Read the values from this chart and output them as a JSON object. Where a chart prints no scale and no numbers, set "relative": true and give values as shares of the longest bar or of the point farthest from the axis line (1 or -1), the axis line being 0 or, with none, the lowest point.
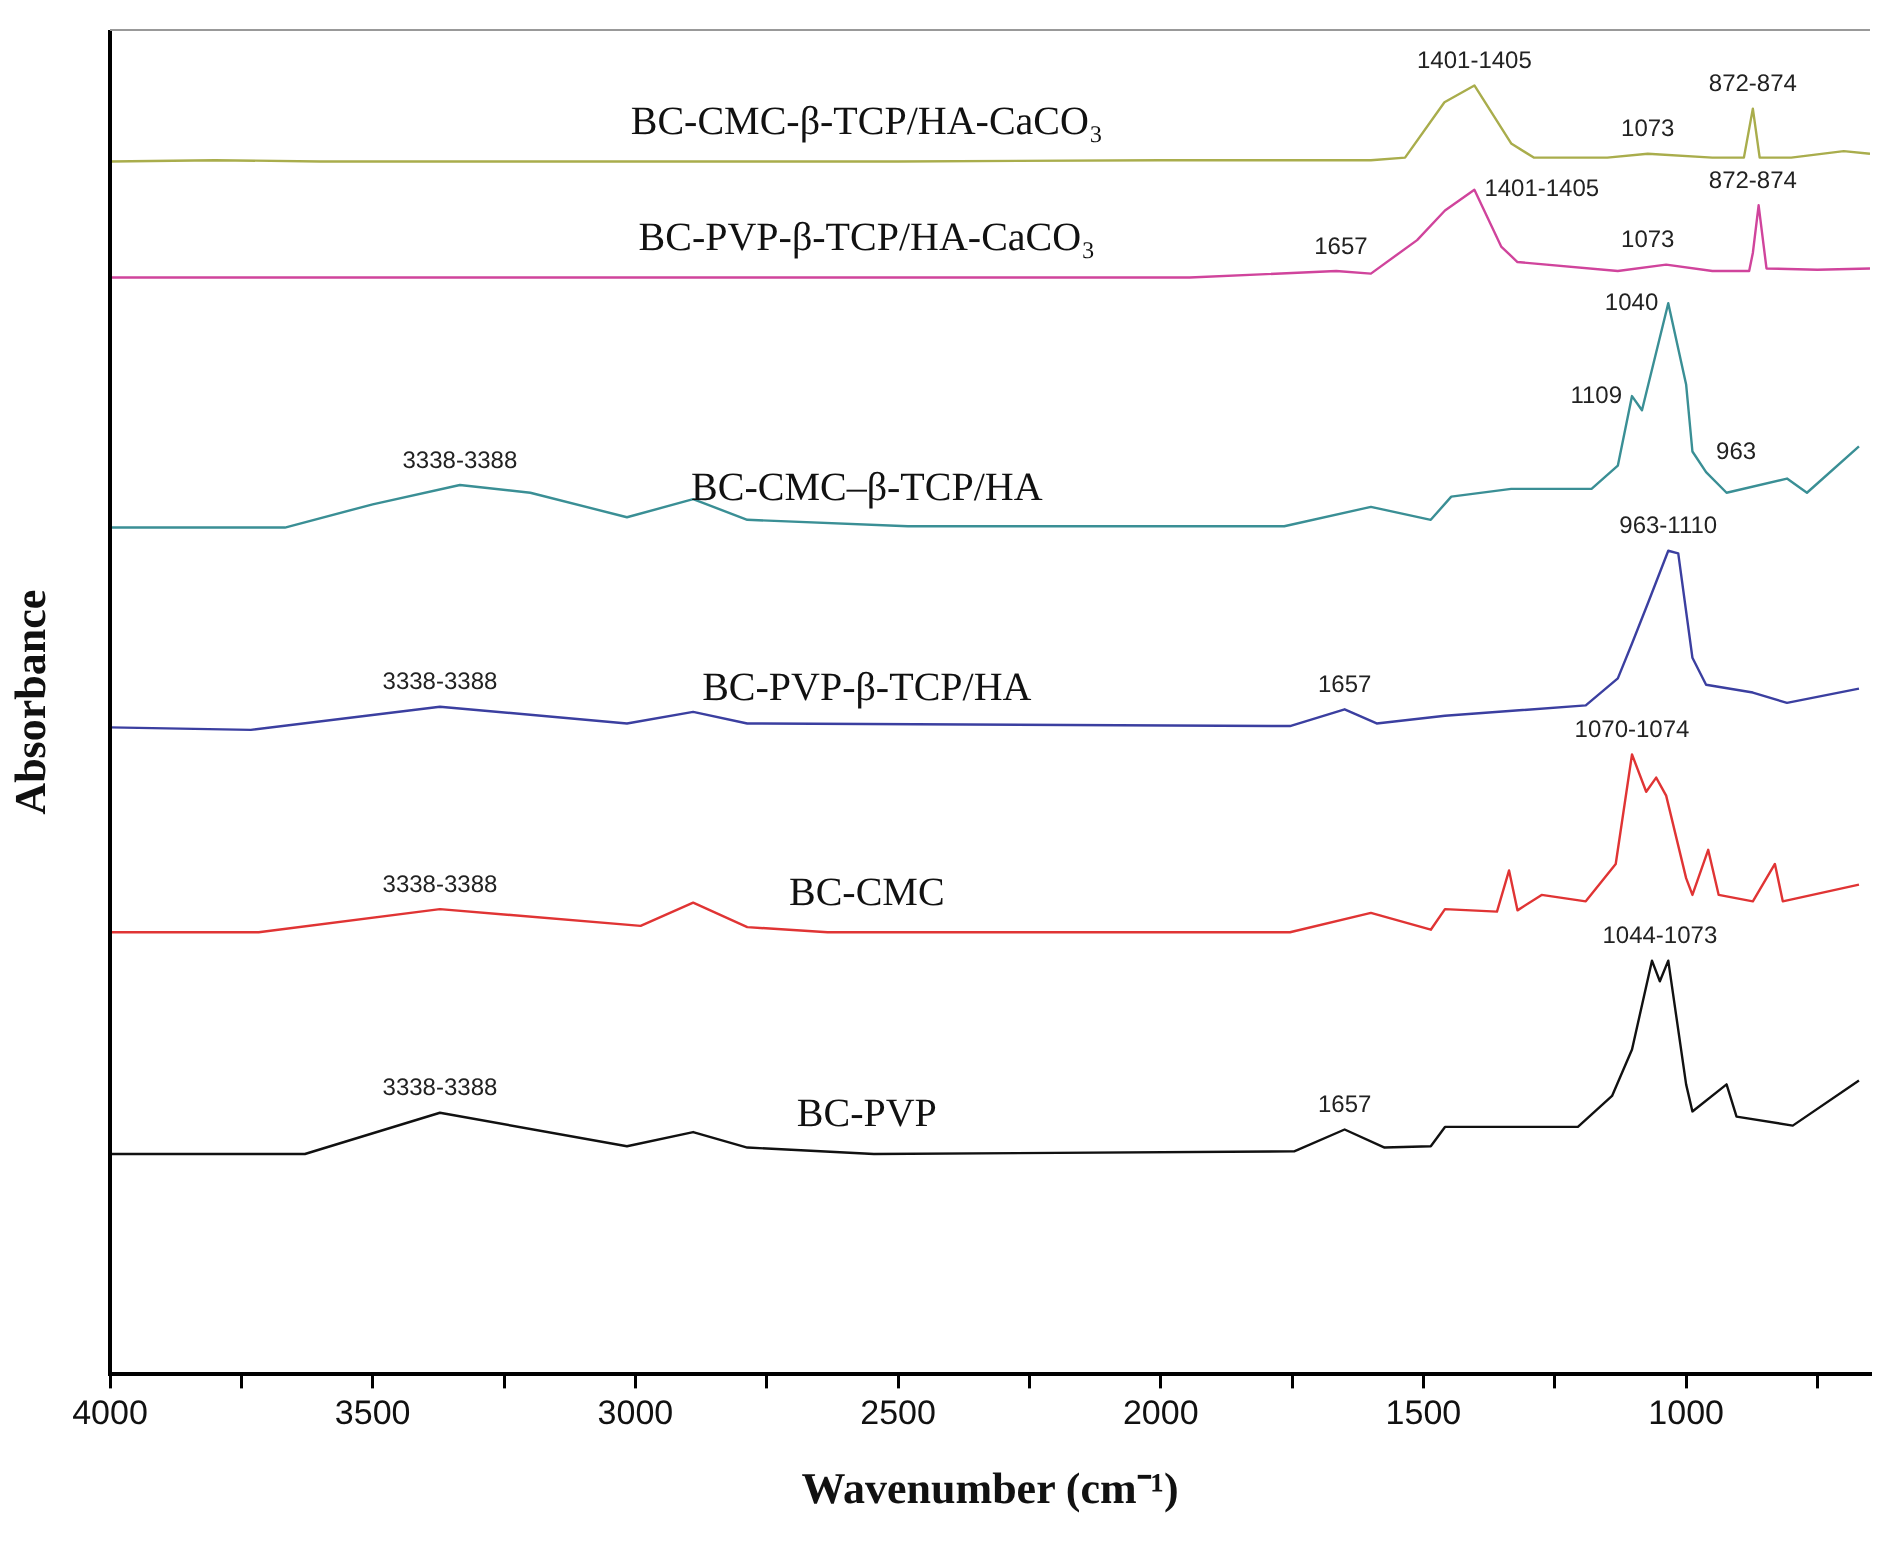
{
  "chart_data": {
    "type": "line",
    "relative": true,
    "xlabel": "Wavenumber (cm⁻¹)",
    "ylabel": "Absorbance",
    "xlim": [
      4000,
      650
    ],
    "xticks": [
      4000,
      {
        "value": 3750,
        "label": null
      },
      3500,
      {
        "value": 3250,
        "label": null
      },
      3000,
      {
        "value": 2750,
        "label": null
      },
      2500,
      {
        "value": 2250,
        "label": null
      },
      2000,
      {
        "value": 1750,
        "label": null
      },
      1500,
      {
        "value": 1250,
        "label": null
      },
      1000,
      {
        "value": 750,
        "label": null
      }
    ],
    "legend": false,
    "marker": "none",
    "line_style": "solid",
    "series": [
      {
        "name": "BC-CMC-β-TCP/HA-CaCO₃",
        "color": "#a9ad4c",
        "x": [
          4000,
          3800,
          3600,
          2500,
          2000,
          1600,
          1535,
          1460,
          1403,
          1333,
          1290,
          1150,
          1073,
          950,
          890,
          873,
          860,
          800,
          700,
          650
        ],
        "values": [
          0.941,
          0.942,
          0.941,
          0.941,
          0.942,
          0.942,
          0.944,
          0.987,
          1.0,
          0.955,
          0.944,
          0.944,
          0.947,
          0.944,
          0.944,
          0.982,
          0.944,
          0.944,
          0.949,
          0.947
        ]
      },
      {
        "name": "BC-PVP-β-TCP/HA-CaCO₃",
        "color": "#d0449c",
        "x": [
          4000,
          3000,
          1945,
          1666,
          1600,
          1512,
          1459,
          1403,
          1352,
          1321,
          1130,
          1038,
          950,
          880,
          873,
          862,
          847,
          750,
          650
        ],
        "values": [
          0.851,
          0.851,
          0.851,
          0.856,
          0.854,
          0.88,
          0.903,
          0.919,
          0.875,
          0.863,
          0.856,
          0.861,
          0.856,
          0.856,
          0.87,
          0.907,
          0.858,
          0.857,
          0.858
        ]
      },
      {
        "name": "BC-CMC–β-TCP/HA",
        "color": "#3a8f95",
        "x": [
          4000,
          3667,
          3500,
          3334,
          3200,
          3016,
          2890,
          2787,
          2481,
          1765,
          1600,
          1486,
          1447,
          1333,
          1180,
          1130,
          1103,
          1084,
          1034,
          1000,
          988,
          962,
          923,
          808,
          770,
          671
        ],
        "values": [
          0.657,
          0.657,
          0.675,
          0.69,
          0.684,
          0.665,
          0.679,
          0.663,
          0.658,
          0.658,
          0.673,
          0.663,
          0.681,
          0.687,
          0.687,
          0.705,
          0.759,
          0.748,
          0.831,
          0.768,
          0.716,
          0.7,
          0.684,
          0.695,
          0.684,
          0.72
        ]
      },
      {
        "name": "BC-PVP-β-TCP/HA",
        "color": "#3b3fa0",
        "x": [
          4000,
          3732,
          3372,
          3016,
          2890,
          2787,
          1754,
          1650,
          1589,
          1459,
          1191,
          1130,
          1103,
          1072,
          1034,
          1015,
          988,
          962,
          873,
          808,
          671
        ],
        "values": [
          0.502,
          0.5,
          0.518,
          0.505,
          0.514,
          0.505,
          0.503,
          0.516,
          0.505,
          0.511,
          0.519,
          0.54,
          0.567,
          0.599,
          0.639,
          0.637,
          0.556,
          0.535,
          0.529,
          0.521,
          0.532
        ]
      },
      {
        "name": "BC-CMC",
        "color": "#e03434",
        "x": [
          4000,
          3717,
          3372,
          2990,
          2890,
          2787,
          2634,
          1754,
          1600,
          1486,
          1459,
          1360,
          1337,
          1321,
          1275,
          1191,
          1134,
          1103,
          1076,
          1057,
          1038,
          1000,
          988,
          958,
          938,
          873,
          831,
          816,
          671
        ],
        "values": [
          0.343,
          0.343,
          0.361,
          0.348,
          0.366,
          0.347,
          0.343,
          0.343,
          0.358,
          0.345,
          0.361,
          0.359,
          0.391,
          0.36,
          0.372,
          0.367,
          0.396,
          0.481,
          0.452,
          0.463,
          0.449,
          0.385,
          0.372,
          0.407,
          0.372,
          0.367,
          0.396,
          0.367,
          0.38
        ]
      },
      {
        "name": "BC-PVP",
        "color": "#111111",
        "x": [
          4000,
          3629,
          3372,
          3016,
          2890,
          2787,
          2546,
          1746,
          1650,
          1574,
          1486,
          1459,
          1206,
          1141,
          1103,
          1065,
          1050,
          1034,
          1000,
          988,
          923,
          904,
          797,
          671
        ],
        "values": [
          0.171,
          0.171,
          0.203,
          0.177,
          0.188,
          0.176,
          0.171,
          0.173,
          0.19,
          0.176,
          0.177,
          0.192,
          0.192,
          0.216,
          0.252,
          0.321,
          0.305,
          0.321,
          0.225,
          0.204,
          0.225,
          0.2,
          0.193,
          0.228
        ]
      }
    ],
    "annotations": [
      {
        "text": "1401-1405",
        "x": 1403,
        "y": 1.0
      },
      {
        "text": "1073",
        "x": 1073,
        "y": 0.947
      },
      {
        "text": "872-874",
        "x": 873,
        "y": 0.982
      },
      {
        "text": "1657",
        "x": 1657,
        "y": 0.856
      },
      {
        "text": "1401-1405",
        "x": 1403,
        "y": 0.919
      },
      {
        "text": "1073",
        "x": 1073,
        "y": 0.861
      },
      {
        "text": "872-874",
        "x": 873,
        "y": 0.907
      },
      {
        "text": "3338-3388",
        "x": 3334,
        "y": 0.69
      },
      {
        "text": "1109",
        "x": 1103,
        "y": 0.759
      },
      {
        "text": "1040",
        "x": 1034,
        "y": 0.831
      },
      {
        "text": "963",
        "x": 962,
        "y": 0.7
      },
      {
        "text": "3338-3388",
        "x": 3372,
        "y": 0.518
      },
      {
        "text": "1657",
        "x": 1650,
        "y": 0.516
      },
      {
        "text": "963-1110",
        "x": 1034,
        "y": 0.639
      },
      {
        "text": "3338-3388",
        "x": 3372,
        "y": 0.361
      },
      {
        "text": "1070-1074",
        "x": 1103,
        "y": 0.481
      },
      {
        "text": "3338-3388",
        "x": 3372,
        "y": 0.203
      },
      {
        "text": "1657",
        "x": 1650,
        "y": 0.19
      },
      {
        "text": "1044-1073",
        "x": 1050,
        "y": 0.321
      }
    ]
  }
}
